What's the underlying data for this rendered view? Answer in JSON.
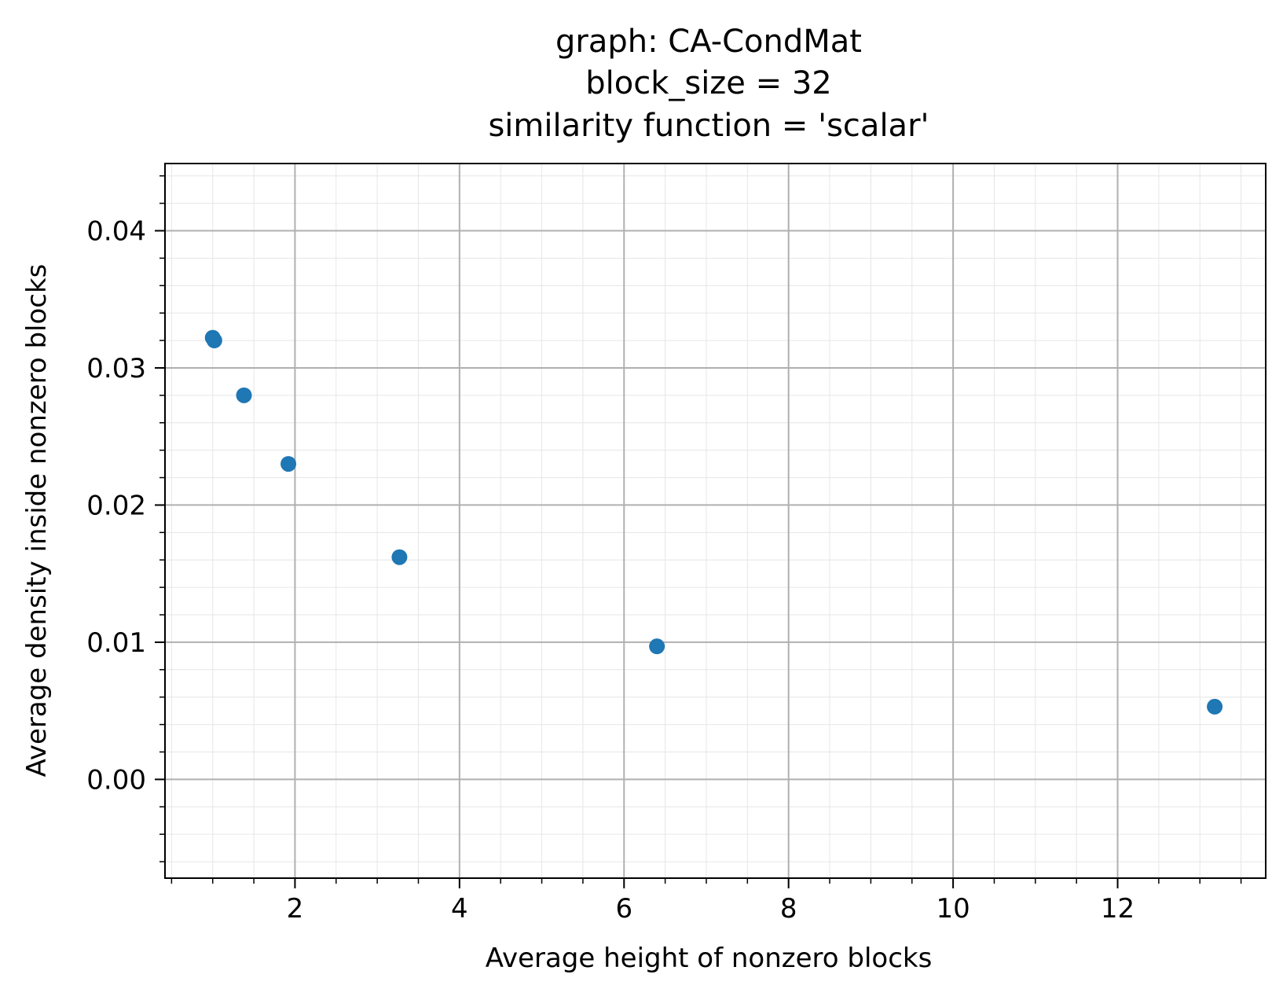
{
  "chart_data": {
    "type": "scatter",
    "title_lines": [
      "graph: CA-CondMat",
      "block_size = 32",
      "similarity function = 'scalar'"
    ],
    "xlabel": "Average height of nonzero blocks",
    "ylabel": "Average density inside nonzero blocks",
    "xlim": [
      0.42,
      13.8
    ],
    "ylim": [
      -0.0072,
      0.0449
    ],
    "x_ticks": [
      2,
      4,
      6,
      8,
      10,
      12
    ],
    "x_tick_labels": [
      "2",
      "4",
      "6",
      "8",
      "10",
      "12"
    ],
    "x_minor_step": 0.5,
    "y_ticks": [
      0.0,
      0.01,
      0.02,
      0.03,
      0.04
    ],
    "y_tick_labels": [
      "0.00",
      "0.01",
      "0.02",
      "0.03",
      "0.04"
    ],
    "y_minor_step": 0.002,
    "grid": true,
    "legend": "none",
    "series": [
      {
        "color": "#1f77b4",
        "points": [
          {
            "x": 1.0,
            "y": 0.0322
          },
          {
            "x": 1.02,
            "y": 0.032
          },
          {
            "x": 1.38,
            "y": 0.028
          },
          {
            "x": 1.92,
            "y": 0.023
          },
          {
            "x": 3.27,
            "y": 0.0162
          },
          {
            "x": 6.4,
            "y": 0.0097
          },
          {
            "x": 13.18,
            "y": 0.0053
          }
        ]
      }
    ]
  }
}
